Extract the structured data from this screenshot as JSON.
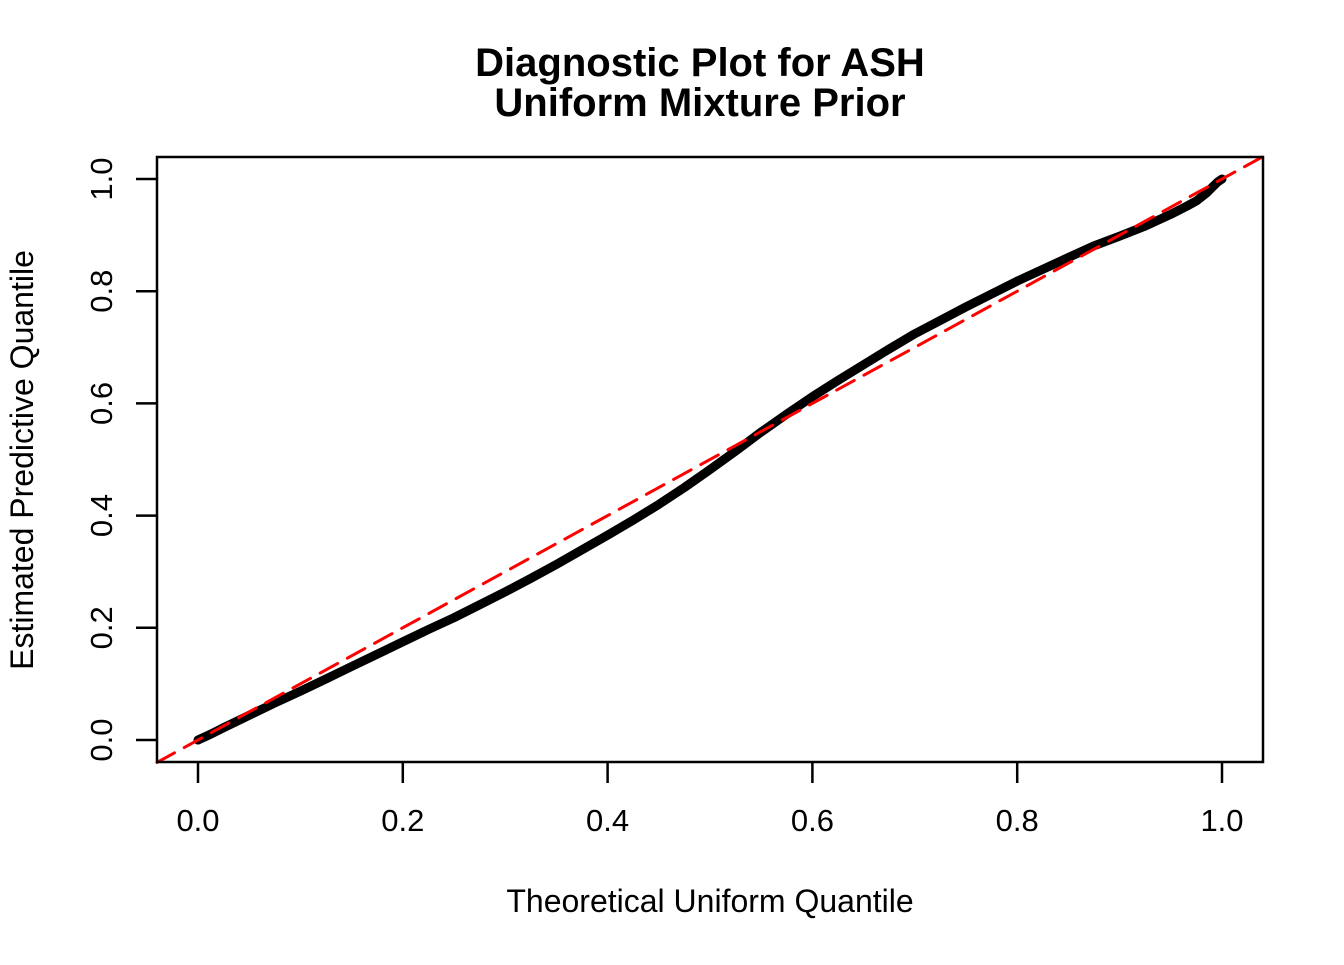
{
  "chart_data": {
    "type": "line",
    "title": "Diagnostic Plot for ASH\nUniform Mixture Prior",
    "title_lines": [
      "Diagnostic Plot for ASH",
      "Uniform Mixture Prior"
    ],
    "xlabel": "Theoretical Uniform Quantile",
    "ylabel": "Estimated Predictive Quantile",
    "xlim": [
      -0.04,
      1.04
    ],
    "ylim": [
      -0.04,
      1.04
    ],
    "grid": false,
    "legend": "none",
    "x_ticks": {
      "values": [
        0.0,
        0.2,
        0.4,
        0.6,
        0.8,
        1.0
      ],
      "labels": [
        "0.0",
        "0.2",
        "0.4",
        "0.6",
        "0.8",
        "1.0"
      ]
    },
    "y_ticks": {
      "values": [
        0.0,
        0.2,
        0.4,
        0.6,
        0.8,
        1.0
      ],
      "labels": [
        "0.0",
        "0.2",
        "0.4",
        "0.6",
        "0.8",
        "1.0"
      ]
    },
    "colors": {
      "curve": "#000000",
      "reference_line": "#FF0000",
      "frame": "#000000"
    },
    "series": [
      {
        "name": "estimated-predictive-quantile-curve",
        "style": "solid",
        "color": "#000000",
        "points": [
          [
            0.0,
            0.0
          ],
          [
            0.012,
            0.01
          ],
          [
            0.025,
            0.022
          ],
          [
            0.05,
            0.044
          ],
          [
            0.075,
            0.066
          ],
          [
            0.1,
            0.087
          ],
          [
            0.125,
            0.109
          ],
          [
            0.15,
            0.131
          ],
          [
            0.175,
            0.153
          ],
          [
            0.2,
            0.175
          ],
          [
            0.225,
            0.197
          ],
          [
            0.25,
            0.218
          ],
          [
            0.275,
            0.241
          ],
          [
            0.3,
            0.264
          ],
          [
            0.325,
            0.288
          ],
          [
            0.35,
            0.313
          ],
          [
            0.375,
            0.339
          ],
          [
            0.4,
            0.365
          ],
          [
            0.425,
            0.392
          ],
          [
            0.45,
            0.42
          ],
          [
            0.475,
            0.45
          ],
          [
            0.5,
            0.482
          ],
          [
            0.525,
            0.515
          ],
          [
            0.55,
            0.549
          ],
          [
            0.575,
            0.581
          ],
          [
            0.6,
            0.612
          ],
          [
            0.625,
            0.641
          ],
          [
            0.65,
            0.669
          ],
          [
            0.675,
            0.697
          ],
          [
            0.7,
            0.724
          ],
          [
            0.725,
            0.748
          ],
          [
            0.75,
            0.772
          ],
          [
            0.775,
            0.795
          ],
          [
            0.8,
            0.818
          ],
          [
            0.825,
            0.839
          ],
          [
            0.85,
            0.86
          ],
          [
            0.875,
            0.881
          ],
          [
            0.9,
            0.898
          ],
          [
            0.925,
            0.916
          ],
          [
            0.95,
            0.937
          ],
          [
            0.965,
            0.951
          ],
          [
            0.975,
            0.961
          ],
          [
            0.985,
            0.975
          ],
          [
            0.992,
            0.988
          ],
          [
            0.996,
            0.995
          ],
          [
            1.0,
            1.0
          ]
        ]
      },
      {
        "name": "identity-reference-line",
        "style": "dashed",
        "color": "#FF0000",
        "points": [
          [
            -0.04,
            -0.04
          ],
          [
            1.04,
            1.04
          ]
        ]
      }
    ]
  }
}
